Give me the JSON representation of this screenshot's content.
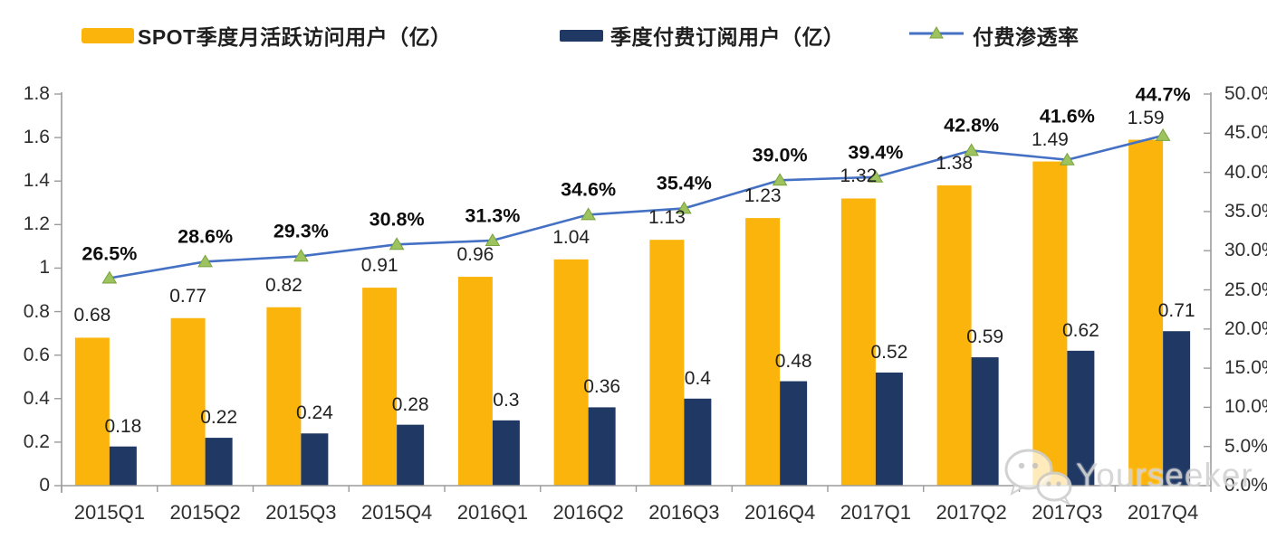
{
  "legend": [
    {
      "label": "SPOT季度月活跃访问用户（亿）",
      "type": "bar",
      "color": "#FBB40C"
    },
    {
      "label": "季度付费订阅用户（亿）",
      "type": "bar",
      "color": "#1F3864"
    },
    {
      "label": "付费渗透率",
      "type": "line",
      "color": "#4571C4",
      "marker_color": "#9DC35E",
      "marker_edge": "#79A23E"
    }
  ],
  "chart_data": {
    "type": "bar+line combo",
    "categories": [
      "2015Q1",
      "2015Q2",
      "2015Q3",
      "2015Q4",
      "2016Q1",
      "2016Q2",
      "2016Q3",
      "2016Q4",
      "2017Q1",
      "2017Q2",
      "2017Q3",
      "2017Q4"
    ],
    "series": [
      {
        "name": "SPOT季度月活跃访问用户（亿）",
        "type": "bar",
        "axis": "left",
        "color": "#FBB40C",
        "values": [
          0.68,
          0.77,
          0.82,
          0.91,
          0.96,
          1.04,
          1.13,
          1.23,
          1.32,
          1.38,
          1.49,
          1.59
        ],
        "labels": [
          "0.68",
          "0.77",
          "0.82",
          "0.91",
          "0.96",
          "1.04",
          "1.13",
          "1.23",
          "1.32",
          "1.38",
          "1.49",
          "1.59"
        ]
      },
      {
        "name": "季度付费订阅用户（亿）",
        "type": "bar",
        "axis": "left",
        "color": "#1F3864",
        "values": [
          0.18,
          0.22,
          0.24,
          0.28,
          0.3,
          0.36,
          0.4,
          0.48,
          0.52,
          0.59,
          0.62,
          0.71
        ],
        "labels": [
          "0.18",
          "0.22",
          "0.24",
          "0.28",
          "0.3",
          "0.36",
          "0.4",
          "0.48",
          "0.52",
          "0.59",
          "0.62",
          "0.71"
        ]
      },
      {
        "name": "付费渗透率",
        "type": "line",
        "axis": "right",
        "color": "#4571C4",
        "marker": "triangle",
        "marker_color": "#9DC35E",
        "marker_edge": "#79A23E",
        "values": [
          26.5,
          28.6,
          29.3,
          30.8,
          31.3,
          34.6,
          35.4,
          39.0,
          39.4,
          42.8,
          41.6,
          44.7
        ],
        "labels": [
          "26.5%",
          "28.6%",
          "29.3%",
          "30.8%",
          "31.3%",
          "34.6%",
          "35.4%",
          "39.0%",
          "39.4%",
          "42.8%",
          "41.6%",
          "44.7%"
        ]
      }
    ],
    "left_axis": {
      "min": 0,
      "max": 1.8,
      "step": 0.2,
      "ticks": [
        "0",
        "0.2",
        "0.4",
        "0.6",
        "0.8",
        "1",
        "1.2",
        "1.4",
        "1.6",
        "1.8"
      ]
    },
    "right_axis": {
      "min": 0,
      "max": 50,
      "step": 5,
      "ticks": [
        "0.0%",
        "5.0%",
        "10.0%",
        "15.0%",
        "20.0%",
        "25.0%",
        "30.0%",
        "35.0%",
        "40.0%",
        "45.0%",
        "50.0%"
      ]
    },
    "grid": false,
    "legend_position": "top",
    "axis_color": "#9b9b9b"
  },
  "watermark": {
    "text": "Yourseeker",
    "icon": "wechat-icon"
  }
}
